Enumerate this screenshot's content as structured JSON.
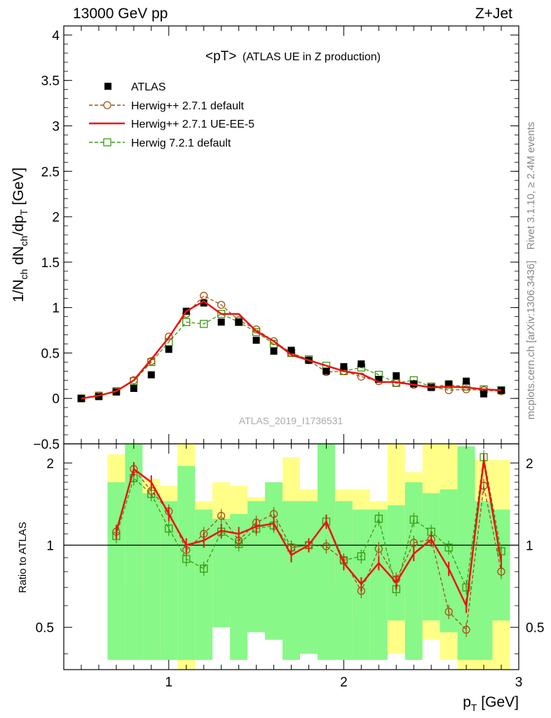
{
  "header": {
    "energy_label": "13000 GeV pp",
    "process_label": "Z+Jet",
    "side_rivet": "Rivet 3.1.10, ≥ 2.4M events",
    "side_mcplots": "mcplots.cern.ch [arXiv:1306.3436]",
    "watermark": "ATLAS_2019_I1736531"
  },
  "colors": {
    "data": "#000000",
    "herwigpp_default": "#a0520f",
    "herwigpp_ueee5": "#ee1111",
    "herwig721": "#3a9a10",
    "band_yellow": "#ffff88",
    "band_green": "#88f888"
  },
  "chart_data": [
    {
      "type": "line",
      "title": "<pT> (ATLAS UE in Z production)",
      "title_main": "<pT>",
      "title_sub": "(ATLAS UE in Z production)",
      "ylabel": "1/N_ch dN_ch/dp_T [GeV]",
      "ylabel_parts": [
        "1/N",
        "ch",
        " dN",
        "ch",
        "/dp",
        "T",
        " [GeV]"
      ],
      "xlim": [
        0.4,
        3.0
      ],
      "ylim": [
        -0.5,
        4.1
      ],
      "yticks": [
        -0.5,
        0,
        0.5,
        1,
        1.5,
        2,
        2.5,
        3,
        3.5,
        4
      ],
      "ytick_labels": [
        "−0.5",
        "0",
        "0.5",
        "1",
        "1.5",
        "2",
        "2.5",
        "3",
        "3.5",
        "4"
      ],
      "legend_position": "top-left",
      "legend": [
        "ATLAS",
        "Herwig++ 2.7.1 default",
        "Herwig++ 2.7.1 UE-EE-5",
        "Herwig 7.2.1 default"
      ],
      "x": [
        0.5,
        0.6,
        0.7,
        0.8,
        0.9,
        1.0,
        1.1,
        1.2,
        1.3,
        1.4,
        1.5,
        1.6,
        1.7,
        1.8,
        1.9,
        2.0,
        2.1,
        2.2,
        2.3,
        2.4,
        2.5,
        2.6,
        2.7,
        2.8,
        2.9
      ],
      "series": [
        {
          "name": "ATLAS",
          "style": "markers",
          "values": [
            0.0,
            0.02,
            0.07,
            0.11,
            0.26,
            0.54,
            0.96,
            1.05,
            0.84,
            0.84,
            0.64,
            0.52,
            0.53,
            0.42,
            0.3,
            0.35,
            0.38,
            0.21,
            0.25,
            0.16,
            0.12,
            0.16,
            0.19,
            0.05,
            0.09
          ]
        },
        {
          "name": "Herwig++ 2.7.1 default",
          "style": "dashed-circle",
          "values": [
            0.0,
            0.03,
            0.08,
            0.2,
            0.41,
            0.68,
            0.93,
            1.13,
            1.03,
            0.86,
            0.76,
            0.63,
            0.5,
            0.42,
            0.29,
            0.3,
            0.24,
            0.19,
            0.17,
            0.15,
            0.13,
            0.09,
            0.1,
            0.09,
            0.08
          ]
        },
        {
          "name": "Herwig++ 2.7.1 UE-EE-5",
          "style": "solid",
          "values": [
            0.0,
            0.03,
            0.08,
            0.2,
            0.43,
            0.67,
            0.96,
            1.07,
            0.93,
            0.93,
            0.74,
            0.63,
            0.48,
            0.42,
            0.36,
            0.3,
            0.27,
            0.18,
            0.18,
            0.15,
            0.12,
            0.13,
            0.12,
            0.1,
            0.09
          ]
        },
        {
          "name": "Herwig 7.2.1 default",
          "style": "dashed-square",
          "values": [
            0.0,
            0.03,
            0.08,
            0.19,
            0.4,
            0.62,
            0.84,
            0.82,
            0.93,
            0.84,
            0.73,
            0.6,
            0.5,
            0.43,
            0.36,
            0.3,
            0.34,
            0.26,
            0.17,
            0.2,
            0.13,
            0.15,
            0.13,
            0.1,
            0.09
          ]
        }
      ]
    },
    {
      "type": "line",
      "ylabel": "Ratio to ATLAS",
      "xlabel": "p_T [GeV]",
      "xlabel_parts": [
        "p",
        "T",
        " [GeV]"
      ],
      "xlim": [
        0.4,
        3.0
      ],
      "xticks": [
        1,
        2,
        3
      ],
      "xtick_labels": [
        "1",
        "2",
        "3"
      ],
      "ylim": [
        0.35,
        2.35
      ],
      "yscale": "log",
      "yticks": [
        0.5,
        1,
        2
      ],
      "ytick_labels": [
        "0.5",
        "1",
        "2"
      ],
      "reference_line": 1,
      "x": [
        0.5,
        0.6,
        0.7,
        0.8,
        0.9,
        1.0,
        1.1,
        1.2,
        1.3,
        1.4,
        1.5,
        1.6,
        1.7,
        1.8,
        1.9,
        2.0,
        2.1,
        2.2,
        2.3,
        2.4,
        2.5,
        2.6,
        2.7,
        2.8,
        2.9
      ],
      "bands": {
        "yellow_low": [
          null,
          null,
          0.38,
          0.72,
          0.7,
          0.4,
          0.33,
          0.62,
          0.7,
          0.56,
          0.68,
          0.67,
          0.4,
          0.5,
          0.4,
          0.7,
          0.55,
          0.4,
          0.4,
          0.4,
          0.45,
          0.38,
          0.35,
          0.35,
          0.35
        ],
        "yellow_high": [
          null,
          null,
          2.15,
          1.75,
          1.75,
          1.65,
          2.35,
          1.45,
          1.7,
          1.65,
          1.5,
          1.45,
          2.1,
          1.6,
          1.75,
          1.6,
          1.6,
          1.45,
          2.35,
          1.85,
          2.35,
          2.35,
          2.15,
          2.05,
          2.05
        ],
        "green_low": [
          null,
          null,
          0.38,
          0.38,
          0.38,
          0.38,
          0.38,
          0.38,
          0.5,
          0.38,
          0.48,
          0.45,
          0.38,
          0.4,
          0.38,
          0.38,
          0.38,
          0.38,
          0.53,
          0.38,
          0.53,
          0.48,
          0.38,
          0.38,
          0.53
        ],
        "green_high": [
          null,
          null,
          1.7,
          2.35,
          1.55,
          1.45,
          1.95,
          1.35,
          1.25,
          1.3,
          1.45,
          1.7,
          1.45,
          1.45,
          2.35,
          1.45,
          1.35,
          1.35,
          1.4,
          1.7,
          1.55,
          1.6,
          2.3,
          1.45,
          1.35
        ]
      },
      "series": [
        {
          "name": "Herwig++ 2.7.1 default",
          "style": "dashed-circle",
          "values": [
            null,
            null,
            1.12,
            1.9,
            1.58,
            1.33,
            0.96,
            1.1,
            1.28,
            1.04,
            1.21,
            1.3,
            0.98,
            1.0,
            0.99,
            0.88,
            0.68,
            0.97,
            0.75,
            1.02,
            1.05,
            0.57,
            0.49,
            1.65,
            0.8
          ]
        },
        {
          "name": "Herwig++ 2.7.1 UE-EE-5",
          "style": "solid",
          "values": [
            null,
            null,
            1.12,
            1.9,
            1.7,
            1.3,
            1.0,
            1.04,
            1.13,
            1.1,
            1.17,
            1.2,
            0.92,
            1.0,
            1.22,
            0.86,
            0.72,
            0.86,
            0.73,
            0.93,
            1.05,
            0.82,
            0.6,
            2.04,
            0.87
          ]
        },
        {
          "name": "Herwig 7.2.1 default",
          "style": "dashed-square",
          "values": [
            null,
            null,
            1.08,
            1.76,
            1.54,
            1.15,
            0.89,
            0.82,
            1.12,
            1.01,
            1.15,
            1.18,
            0.98,
            1.0,
            1.22,
            0.88,
            0.91,
            1.25,
            0.69,
            1.24,
            1.12,
            0.98,
            0.7,
            2.1,
            0.95
          ]
        }
      ]
    }
  ]
}
